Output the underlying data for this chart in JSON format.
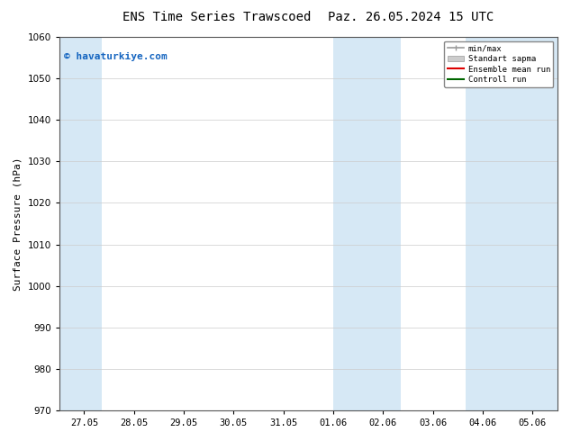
{
  "title_left": "ENS Time Series Trawscoed",
  "title_right": "Paz. 26.05.2024 15 UTC",
  "ylabel": "Surface Pressure (hPa)",
  "watermark": "© havaturkiye.com",
  "watermark_color": "#1565C0",
  "ylim": [
    970,
    1060
  ],
  "yticks": [
    970,
    980,
    990,
    1000,
    1010,
    1020,
    1030,
    1040,
    1050,
    1060
  ],
  "x_labels": [
    "27.05",
    "28.05",
    "29.05",
    "30.05",
    "31.05",
    "01.06",
    "02.06",
    "03.06",
    "04.06",
    "05.06"
  ],
  "x_values": [
    0,
    1,
    2,
    3,
    4,
    5,
    6,
    7,
    8,
    9
  ],
  "xlim": [
    -0.5,
    9.5
  ],
  "shaded_bands": [
    {
      "x_start": -0.5,
      "x_end": 0.35,
      "color": "#d6e8f5"
    },
    {
      "x_start": 5.0,
      "x_end": 6.35,
      "color": "#d6e8f5"
    },
    {
      "x_start": 7.65,
      "x_end": 9.5,
      "color": "#d6e8f5"
    }
  ],
  "legend_entries": [
    {
      "label": "min/max",
      "color": "#999999",
      "type": "line",
      "linewidth": 1.2
    },
    {
      "label": "Standart sapma",
      "color": "#cccccc",
      "type": "patch"
    },
    {
      "label": "Ensemble mean run",
      "color": "#dd0000",
      "type": "line",
      "linewidth": 1.5
    },
    {
      "label": "Controll run",
      "color": "#006600",
      "type": "line",
      "linewidth": 1.5
    }
  ],
  "background_color": "#ffffff",
  "plot_bg_color": "#ffffff",
  "grid_color": "#cccccc",
  "title_fontsize": 10,
  "label_fontsize": 8,
  "tick_fontsize": 7.5,
  "watermark_fontsize": 8
}
